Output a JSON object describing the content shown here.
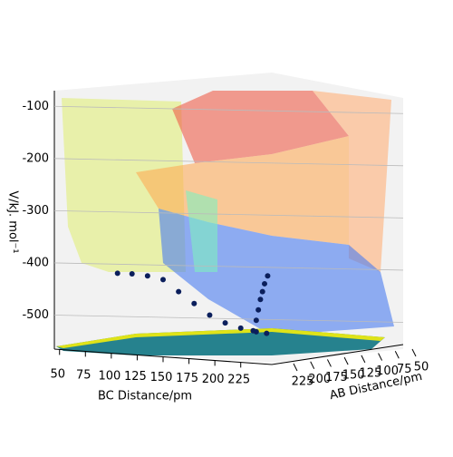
{
  "chart_data": {
    "type": "surface3d",
    "xlabel": "BC Distance/pm",
    "ylabel": "AB Distance/pm",
    "zlabel": "V/kJ. mol⁻¹",
    "xlim": [
      45,
      255
    ],
    "xticks": [
      50,
      75,
      100,
      125,
      150,
      175,
      200,
      225
    ],
    "ylim": [
      50,
      225
    ],
    "yticks": [
      50,
      75,
      100,
      125,
      150,
      175,
      200,
      225
    ],
    "zlim": [
      -560,
      -70
    ],
    "zticks": [
      -100,
      -200,
      -300,
      -400,
      -500
    ],
    "series": [
      {
        "color": "#0b1f5c",
        "x": [
          106,
          120,
          135,
          150,
          165,
          180,
          195,
          210,
          225,
          240,
          250
        ],
        "values": [
          -420,
          -421,
          -425,
          -432,
          -455,
          -478,
          -500,
          -515,
          -525,
          -532,
          -535
        ]
      },
      {
        "color": "#0b1f5c",
        "x": [
          237,
          240,
          242,
          244,
          246,
          248,
          251
        ],
        "values": [
          -530,
          -510,
          -490,
          -470,
          -455,
          -440,
          -425
        ]
      }
    ]
  }
}
